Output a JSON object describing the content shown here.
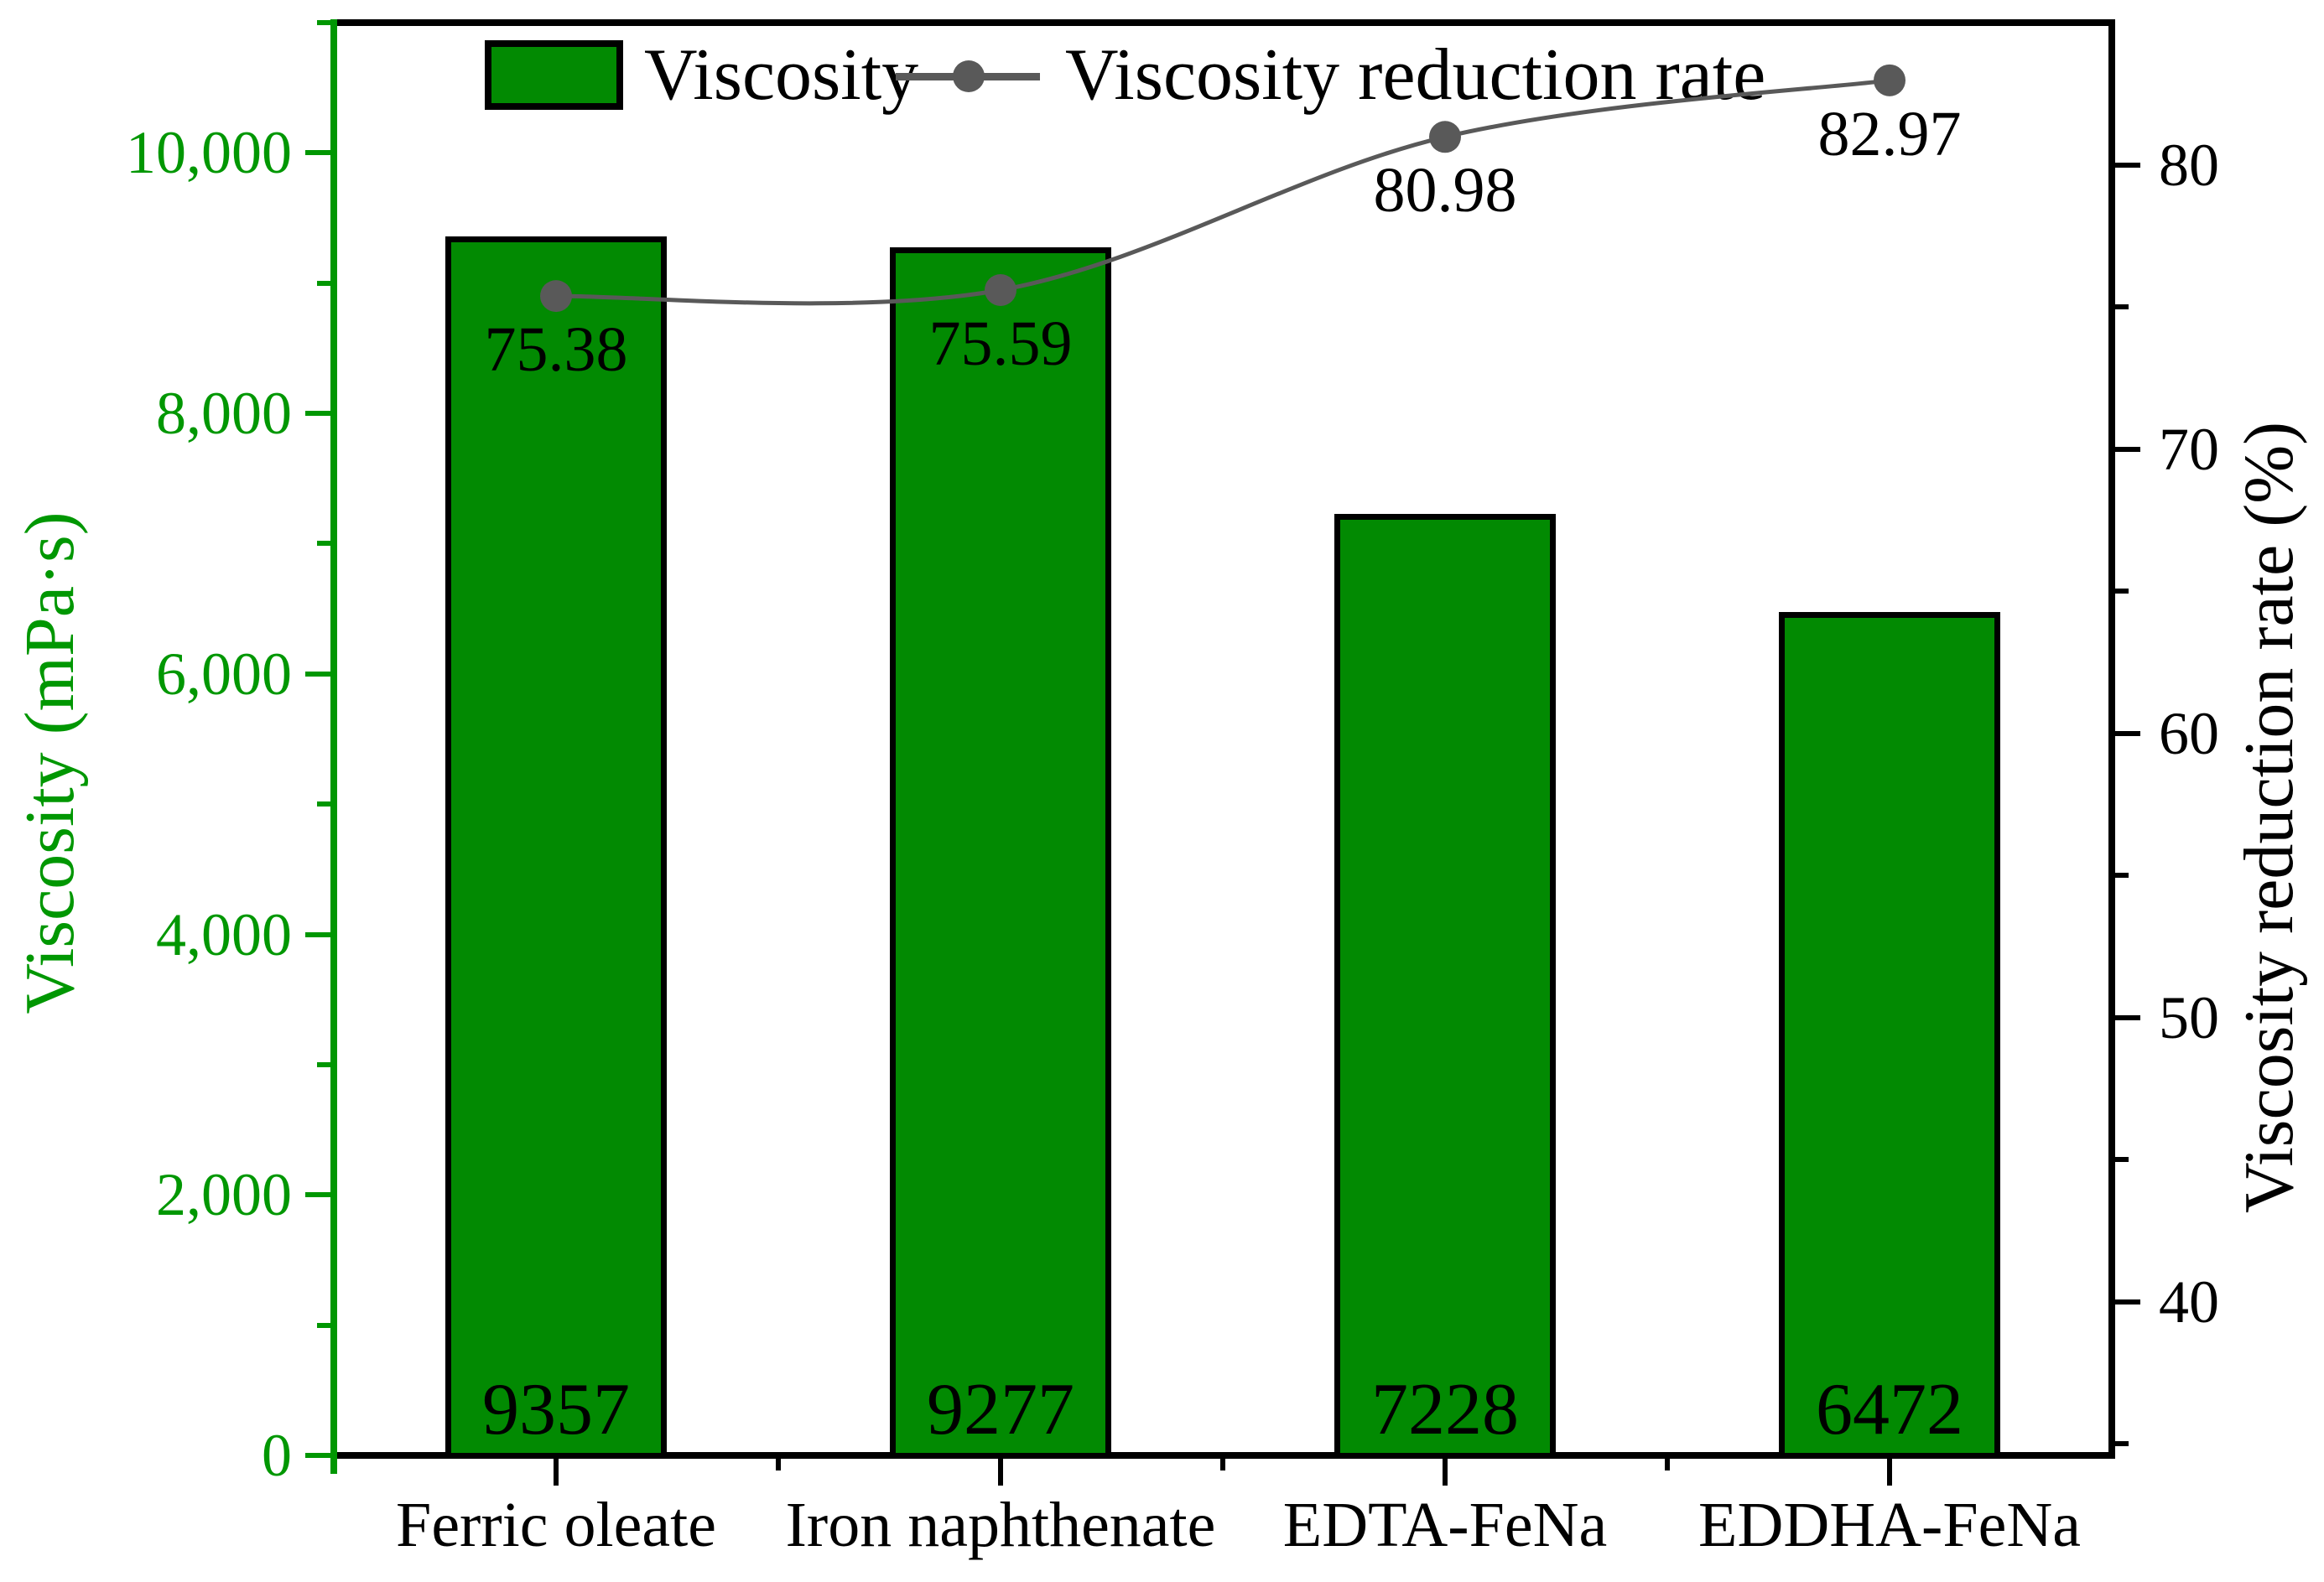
{
  "chart_data": {
    "type": "composite-bar-line",
    "categories": [
      "Ferric oleate",
      "Iron naphthenate",
      "EDTA-FeNa",
      "EDDHA-FeNa"
    ],
    "series": [
      {
        "name": "Viscosity",
        "type": "bar",
        "axis": "left",
        "color": "#028a02",
        "values": [
          9357,
          9277,
          7228,
          6472
        ],
        "value_labels": [
          "9357",
          "9277",
          "7228",
          "6472"
        ]
      },
      {
        "name": "Viscosity reduction rate",
        "type": "line",
        "axis": "right",
        "color": "#595959",
        "values": [
          75.38,
          75.59,
          80.98,
          82.97
        ],
        "value_labels": [
          "75.38",
          "75.59",
          "80.98",
          "82.97"
        ]
      }
    ],
    "left_axis": {
      "title": "Viscosity (mPa·s)",
      "color": "#009702",
      "ylim": [
        0,
        11000
      ],
      "major_ticks": [
        0,
        2000,
        4000,
        6000,
        8000,
        10000
      ],
      "tick_labels": [
        "0",
        "2,000",
        "4,000",
        "6,000",
        "8,000",
        "10,000"
      ],
      "minor_ticks": [
        1000,
        3000,
        5000,
        7000,
        9000,
        11000
      ]
    },
    "right_axis": {
      "title": "Viscosity reduction rate (%)",
      "color": "#000000",
      "ylim": [
        34.6,
        85
      ],
      "major_ticks": [
        40,
        50,
        60,
        70,
        80
      ],
      "tick_labels": [
        "40",
        "50",
        "60",
        "70",
        "80"
      ],
      "minor_ticks": [
        35,
        45,
        55,
        65,
        75,
        85
      ]
    },
    "x_axis": {
      "labels": [
        "Ferric oleate",
        "Iron naphthenate",
        "EDTA-FeNa",
        "EDDHA-FeNa"
      ]
    },
    "legend": {
      "items": [
        {
          "label": "Viscosity",
          "symbol": "bar-swatch"
        },
        {
          "label": "Viscosity reduction rate",
          "symbol": "line-dot"
        }
      ],
      "position": "top-inside"
    },
    "grid": false,
    "background": "#ffffff"
  }
}
